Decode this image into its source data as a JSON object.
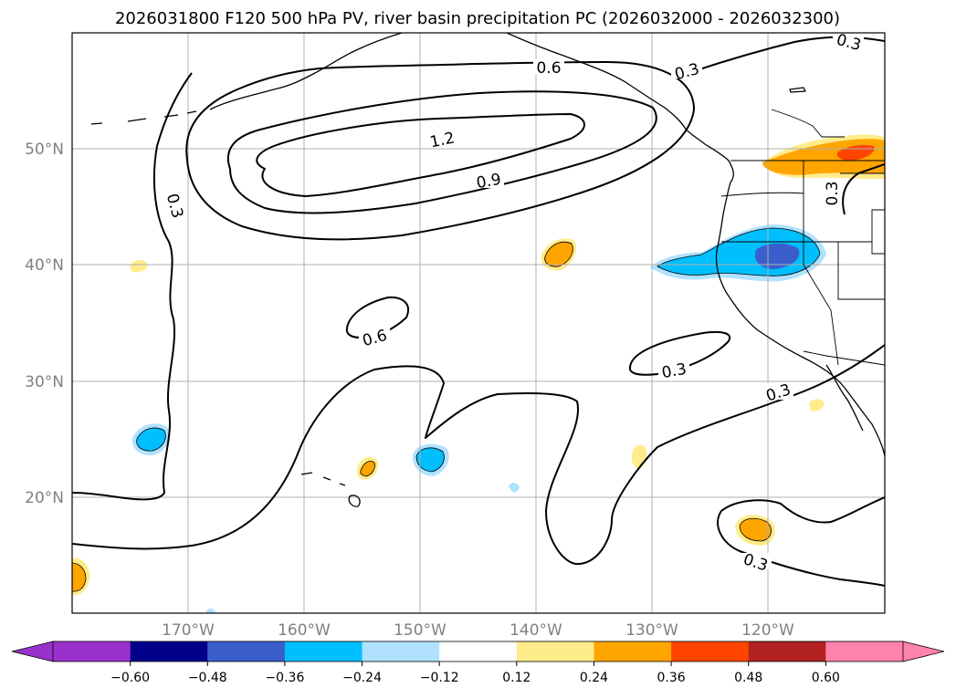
{
  "title": "2026031800 F120 500 hPa PV, river basin precipitation PC (2026032000 - 2026032300)",
  "lat_labels": [
    "50°N",
    "40°N",
    "30°N",
    "20°N"
  ],
  "lon_labels": [
    "170°W",
    "160°W",
    "150°W",
    "140°W",
    "130°W",
    "120°W"
  ],
  "pv_contour_labels": [
    "1.2",
    "0.9",
    "0.6",
    "0.6",
    "0.3",
    "0.3",
    "0.3",
    "0.3",
    "0.3",
    "0.3",
    "0.3"
  ],
  "colorbar": {
    "ticks": [
      "−0.60",
      "−0.48",
      "−0.36",
      "−0.24",
      "−0.12",
      "0.12",
      "0.24",
      "0.36",
      "0.48",
      "0.60"
    ],
    "colors": [
      "#9932cc",
      "#00008b",
      "#3a5fcd",
      "#00bfff",
      "#b0e2ff",
      "#ffffff",
      "#ffec8b",
      "#ffa500",
      "#ff4500",
      "#b22222",
      "#ff82ab"
    ]
  }
}
